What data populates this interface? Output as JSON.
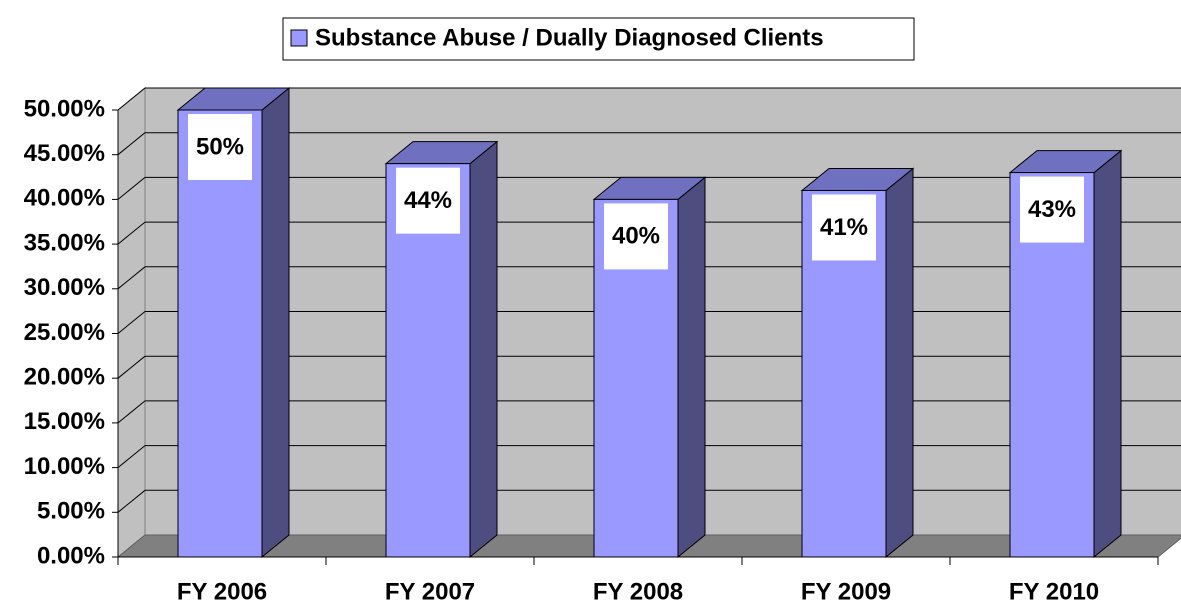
{
  "chart_data": {
    "type": "bar3d",
    "categories": [
      "FY 2006",
      "FY 2007",
      "FY 2008",
      "FY 2009",
      "FY 2010"
    ],
    "series": [
      {
        "name": "Substance Abuse / Dually Diagnosed Clients",
        "color": "#9999ff",
        "values": [
          50,
          44,
          40,
          41,
          43
        ],
        "value_labels": [
          "50%",
          "44%",
          "40%",
          "41%",
          "43%"
        ]
      }
    ],
    "ylim": [
      0,
      50
    ],
    "yticks": [
      {
        "value": 0,
        "label": "0.00%"
      },
      {
        "value": 5,
        "label": "5.00%"
      },
      {
        "value": 10,
        "label": "10.00%"
      },
      {
        "value": 15,
        "label": "15.00%"
      },
      {
        "value": 20,
        "label": "20.00%"
      },
      {
        "value": 25,
        "label": "25.00%"
      },
      {
        "value": 30,
        "label": "30.00%"
      },
      {
        "value": 35,
        "label": "35.00%"
      },
      {
        "value": 40,
        "label": "40.00%"
      },
      {
        "value": 45,
        "label": "45.00%"
      },
      {
        "value": 50,
        "label": "50.00%"
      }
    ],
    "grid": true,
    "legend": "top"
  }
}
